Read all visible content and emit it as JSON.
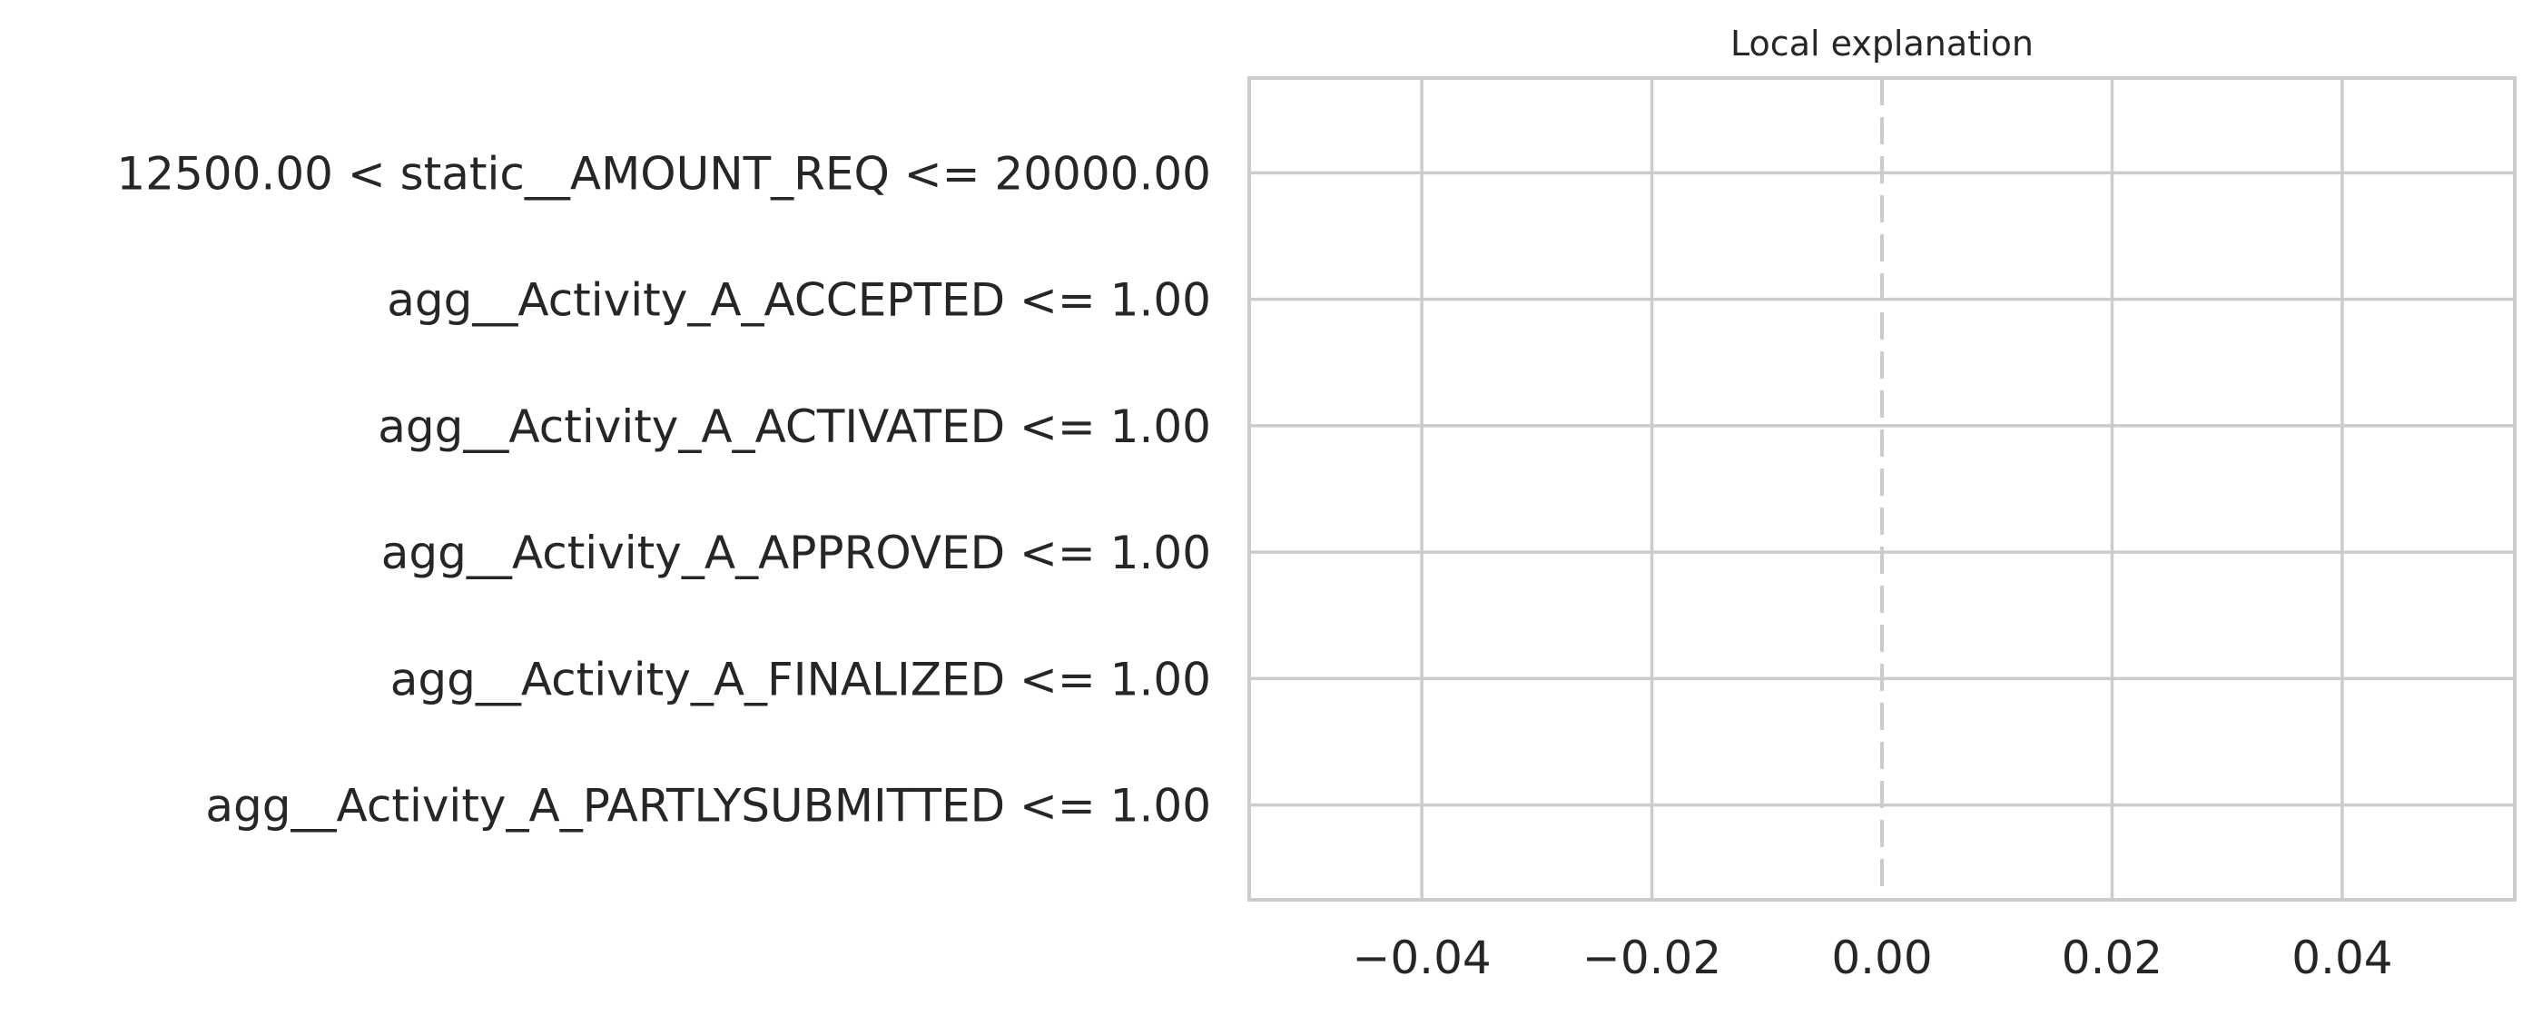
{
  "chart_data": {
    "type": "bar",
    "orientation": "horizontal",
    "title": "Local explanation",
    "xlabel": "",
    "ylabel": "",
    "categories": [
      "12500.00 < static__AMOUNT_REQ <= 20000.00",
      "agg__Activity_A_ACCEPTED <= 1.00",
      "agg__Activity_A_ACTIVATED <= 1.00",
      "agg__Activity_A_APPROVED <= 1.00",
      "agg__Activity_A_FINALIZED <= 1.00",
      "agg__Activity_A_PARTLYSUBMITTED <= 1.00"
    ],
    "values": [
      0,
      0,
      0,
      0,
      0,
      0
    ],
    "xlim": [
      -0.055,
      0.055
    ],
    "xticks": [
      -0.04,
      -0.02,
      0.0,
      0.02,
      0.04
    ],
    "xtick_labels": [
      "−0.04",
      "−0.02",
      "0.00",
      "0.02",
      "0.04"
    ],
    "reference_line": 0.0,
    "grid": true,
    "colors": {
      "grid": "#cccccc",
      "frame": "#cccccc",
      "text": "#262626",
      "bar_positive": "#2ca02c",
      "bar_negative": "#d62728"
    }
  }
}
